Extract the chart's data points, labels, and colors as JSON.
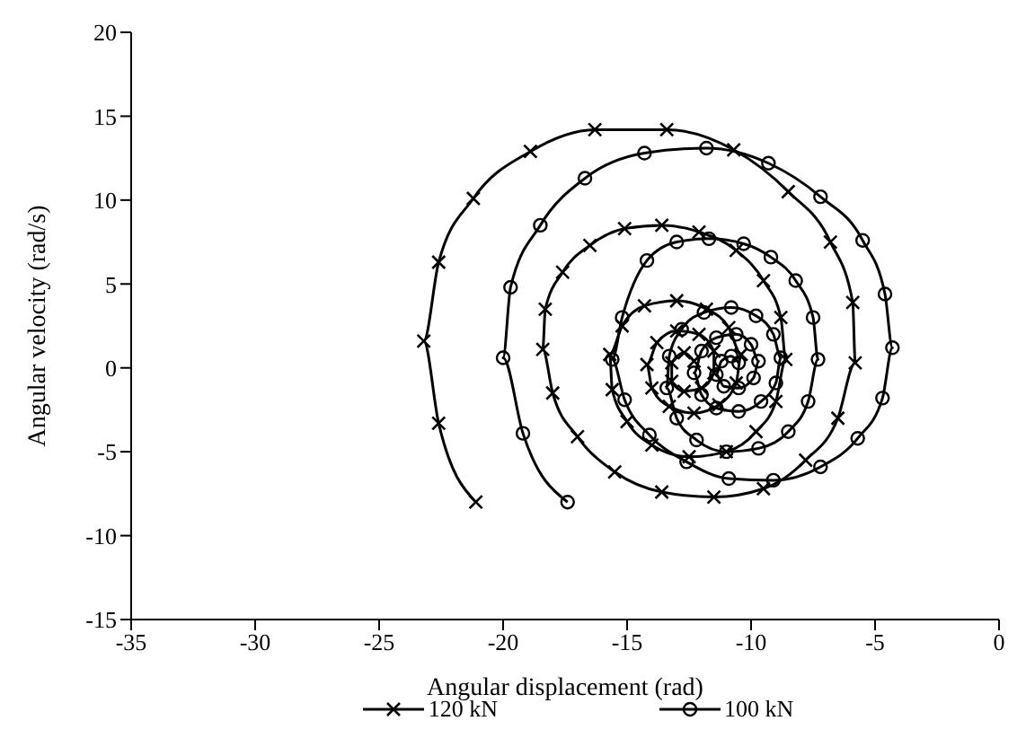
{
  "chart_data": {
    "type": "line",
    "xlabel": "Angular displacement (rad)",
    "ylabel": "Angular velocity (rad/s)",
    "xlim": [
      -35,
      0
    ],
    "xticks": [
      -35,
      -30,
      -25,
      -20,
      -15,
      -10,
      -5,
      0
    ],
    "ylim": [
      -15,
      20
    ],
    "yticks": [
      -15,
      -10,
      -5,
      0,
      5,
      10,
      15,
      20
    ],
    "grid": false,
    "legend": "bottom",
    "series": [
      {
        "name": "120 kN",
        "color": "#000000",
        "marker": "cross",
        "x": [
          -21.1,
          -22.6,
          -23.2,
          -22.6,
          -21.2,
          -18.9,
          -16.3,
          -13.4,
          -10.7,
          -8.5,
          -6.8,
          -5.9,
          -5.8,
          -6.5,
          -7.8,
          -9.5,
          -11.5,
          -13.6,
          -15.5,
          -17.0,
          -18.0,
          -18.4,
          -18.3,
          -17.6,
          -16.5,
          -15.1,
          -13.6,
          -12.1,
          -10.6,
          -9.5,
          -8.8,
          -8.6,
          -9.0,
          -9.8,
          -11.0,
          -12.5,
          -14.0,
          -15.0,
          -15.6,
          -15.7,
          -15.2,
          -14.3,
          -13.0,
          -11.8,
          -10.9,
          -10.4,
          -10.6,
          -11.3,
          -12.3,
          -13.3,
          -14.0,
          -14.2,
          -13.8,
          -13.0,
          -12.1,
          -11.5,
          -11.5,
          -12.0,
          -12.7,
          -13.2,
          -13.2,
          -12.7,
          -12.3
        ],
        "values": [
          -8.0,
          -3.3,
          1.6,
          6.3,
          10.1,
          12.9,
          14.2,
          14.2,
          13.0,
          10.5,
          7.5,
          3.9,
          0.3,
          -3.0,
          -5.5,
          -7.2,
          -7.7,
          -7.4,
          -6.2,
          -4.1,
          -1.5,
          1.1,
          3.5,
          5.7,
          7.3,
          8.3,
          8.5,
          8.1,
          7.0,
          5.2,
          3.0,
          0.5,
          -2.0,
          -3.8,
          -5.0,
          -5.3,
          -4.6,
          -3.2,
          -1.3,
          0.8,
          2.5,
          3.7,
          4.0,
          3.5,
          2.4,
          0.8,
          -0.9,
          -2.2,
          -2.7,
          -2.3,
          -1.2,
          0.2,
          1.5,
          2.2,
          2.0,
          1.0,
          -0.3,
          -1.2,
          -1.4,
          -0.8,
          0.3,
          0.9,
          0.4
        ]
      },
      {
        "name": "100 kN",
        "color": "#000000",
        "marker": "circle",
        "x": [
          -17.4,
          -19.2,
          -20.0,
          -19.7,
          -18.5,
          -16.7,
          -14.3,
          -11.8,
          -9.3,
          -7.2,
          -5.5,
          -4.6,
          -4.3,
          -4.7,
          -5.7,
          -7.2,
          -9.1,
          -10.9,
          -12.6,
          -14.1,
          -15.1,
          -15.6,
          -15.2,
          -14.2,
          -13.0,
          -11.7,
          -10.3,
          -9.2,
          -8.2,
          -7.5,
          -7.3,
          -7.7,
          -8.5,
          -9.7,
          -11.0,
          -12.2,
          -13.0,
          -13.4,
          -13.3,
          -12.8,
          -11.9,
          -10.8,
          -9.8,
          -9.1,
          -8.8,
          -9.0,
          -9.6,
          -10.5,
          -11.4,
          -12.0,
          -12.3,
          -12.0,
          -11.4,
          -10.6,
          -10.0,
          -9.7,
          -9.9,
          -10.5,
          -11.1,
          -11.4,
          -11.2,
          -10.8,
          -10.5
        ],
        "values": [
          -8.0,
          -3.9,
          0.6,
          4.8,
          8.5,
          11.3,
          12.8,
          13.1,
          12.2,
          10.2,
          7.6,
          4.4,
          1.2,
          -1.8,
          -4.2,
          -5.9,
          -6.7,
          -6.6,
          -5.6,
          -4.0,
          -1.9,
          0.5,
          3.0,
          6.4,
          7.5,
          7.7,
          7.4,
          6.6,
          5.2,
          3.0,
          0.5,
          -2.0,
          -3.8,
          -4.8,
          -5.0,
          -4.3,
          -3.0,
          -1.2,
          0.7,
          2.3,
          3.3,
          3.6,
          3.1,
          2.0,
          0.6,
          -0.9,
          -2.0,
          -2.6,
          -2.4,
          -1.6,
          -0.3,
          1.0,
          1.8,
          2.0,
          1.4,
          0.4,
          -0.6,
          -1.2,
          -1.1,
          -0.4,
          0.4,
          0.7,
          0.3
        ]
      }
    ]
  }
}
